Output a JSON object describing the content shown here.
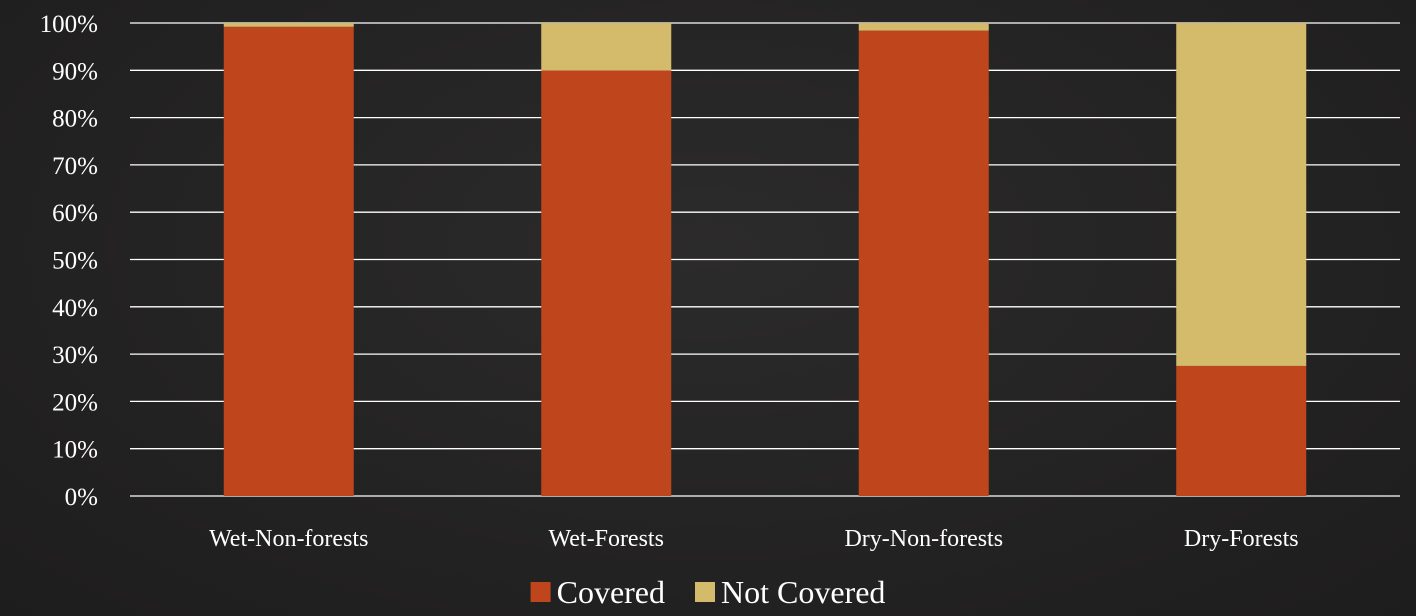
{
  "chart_data": {
    "type": "bar",
    "stacked": true,
    "categories": [
      "Wet-Non-forests",
      "Wet-Forests",
      "Dry-Non-forests",
      "Dry-Forests"
    ],
    "series": [
      {
        "name": "Covered",
        "color": "#bf461c",
        "values": [
          99.2,
          90.0,
          98.4,
          27.5
        ]
      },
      {
        "name": "Not Covered",
        "color": "#d4bb6c",
        "values": [
          0.8,
          10.0,
          1.6,
          72.5
        ]
      }
    ],
    "title": "",
    "xlabel": "",
    "ylabel": "",
    "ylim": [
      0,
      100
    ],
    "yticks": [
      "0%",
      "10%",
      "20%",
      "30%",
      "40%",
      "50%",
      "60%",
      "70%",
      "80%",
      "90%",
      "100%"
    ],
    "grid": true,
    "legend_position": "bottom-center"
  }
}
